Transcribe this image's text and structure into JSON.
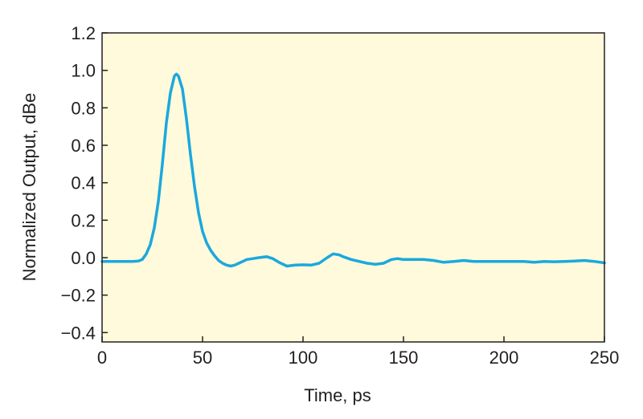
{
  "chart_data": {
    "type": "line",
    "title": "",
    "xlabel": "Time, ps",
    "ylabel": "Normalized Output, dBe",
    "xlim": [
      0,
      250
    ],
    "ylim": [
      -0.45,
      1.2
    ],
    "xticks": [
      0,
      50,
      100,
      150,
      200,
      250
    ],
    "xtick_labels": [
      "0",
      "50",
      "100",
      "150",
      "200",
      "250"
    ],
    "yticks": [
      1.2,
      1.0,
      0.8,
      0.6,
      0.4,
      0.2,
      0.0,
      -0.2,
      -0.4
    ],
    "ytick_labels": [
      "1.2",
      "1.0",
      "0.8",
      "0.6",
      "0.4",
      "0.2",
      "0.0",
      "−0.2",
      "−0.4"
    ],
    "grid": false,
    "colors": {
      "plot_background": "#fefadb",
      "line": "#1ba8dd",
      "axes": "#231f20"
    },
    "series": [
      {
        "x": [
          0,
          5,
          10,
          15,
          18,
          20,
          22,
          24,
          26,
          28,
          30,
          32,
          34,
          36,
          37,
          38,
          40,
          42,
          44,
          46,
          48,
          50,
          52,
          54,
          56,
          58,
          60,
          62,
          64,
          66,
          68,
          70,
          72,
          75,
          78,
          82,
          85,
          88,
          92,
          96,
          100,
          104,
          108,
          112,
          115,
          118,
          120,
          124,
          128,
          132,
          136,
          140,
          144,
          147,
          150,
          155,
          160,
          165,
          170,
          175,
          180,
          185,
          190,
          195,
          200,
          205,
          210,
          215,
          220,
          225,
          230,
          235,
          240,
          245,
          250
        ],
        "y": [
          -0.02,
          -0.02,
          -0.02,
          -0.02,
          -0.018,
          -0.01,
          0.02,
          0.07,
          0.16,
          0.3,
          0.5,
          0.72,
          0.88,
          0.97,
          0.98,
          0.97,
          0.9,
          0.74,
          0.55,
          0.38,
          0.24,
          0.14,
          0.08,
          0.04,
          0.01,
          -0.015,
          -0.03,
          -0.04,
          -0.045,
          -0.04,
          -0.03,
          -0.02,
          -0.01,
          -0.005,
          0.0,
          0.005,
          -0.005,
          -0.025,
          -0.045,
          -0.04,
          -0.038,
          -0.04,
          -0.03,
          0.0,
          0.02,
          0.015,
          0.005,
          -0.01,
          -0.02,
          -0.03,
          -0.035,
          -0.03,
          -0.01,
          -0.005,
          -0.01,
          -0.01,
          -0.01,
          -0.015,
          -0.025,
          -0.02,
          -0.015,
          -0.02,
          -0.02,
          -0.02,
          -0.02,
          -0.02,
          -0.02,
          -0.025,
          -0.02,
          -0.022,
          -0.02,
          -0.018,
          -0.015,
          -0.02,
          -0.028
        ]
      }
    ]
  }
}
